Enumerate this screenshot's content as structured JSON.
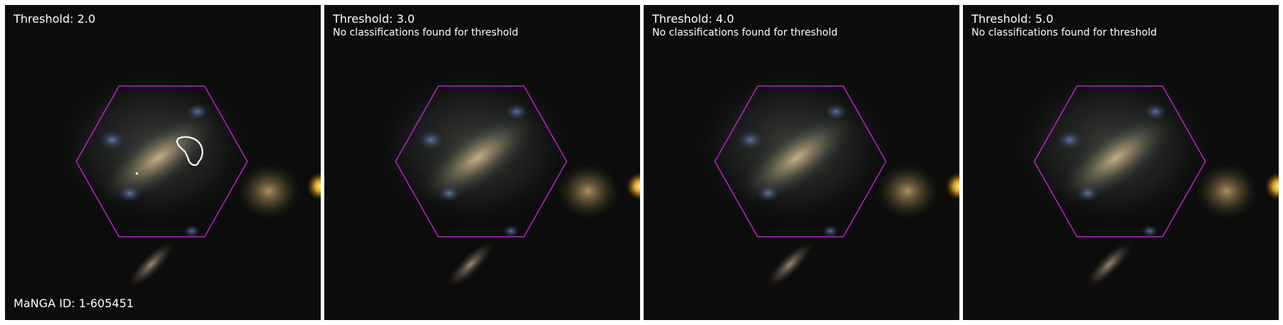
{
  "panels": [
    {
      "threshold_label": "Threshold: 2.0",
      "message": "",
      "has_contour": true
    },
    {
      "threshold_label": "Threshold: 3.0",
      "message": "No classifications found for threshold",
      "has_contour": false
    },
    {
      "threshold_label": "Threshold: 4.0",
      "message": "No classifications found for threshold",
      "has_contour": false
    },
    {
      "threshold_label": "Threshold: 5.0",
      "message": "No classifications found for threshold",
      "has_contour": false
    }
  ],
  "manga_id_label": "MaNGA ID: 1-605451",
  "colors": {
    "hexagon": "#c21ccf",
    "contour": "#ffffff",
    "background": "#0b0c0b"
  }
}
